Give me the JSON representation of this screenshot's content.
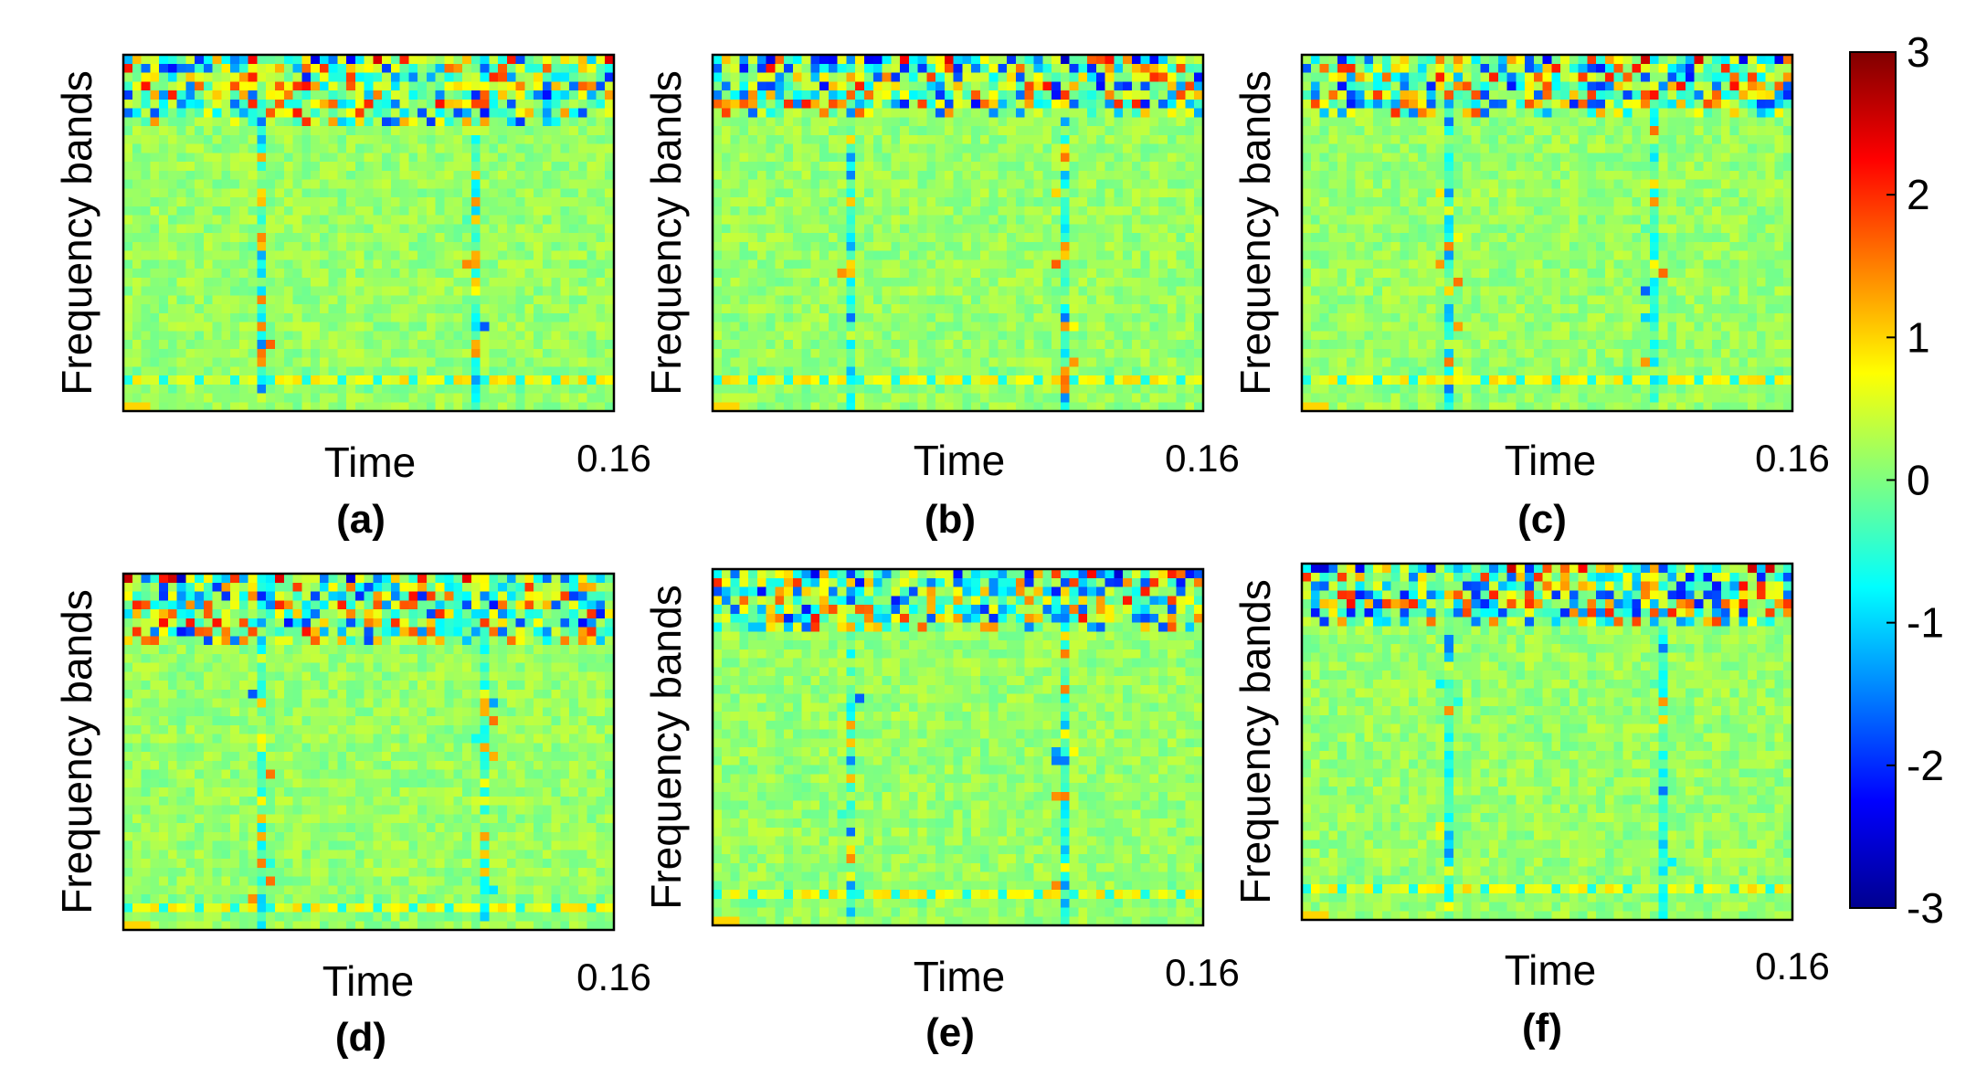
{
  "chart_data": [
    {
      "type": "heatmap",
      "panel_label": "(a)",
      "ylabel": "Frequency bands",
      "xlabel": "Time",
      "x_end_tick": "0.16",
      "rows": 40,
      "cols": 55,
      "top_band_rows": 7,
      "low_band_row": 36,
      "event_cols": [
        15,
        39
      ],
      "seed": 11
    },
    {
      "type": "heatmap",
      "panel_label": "(b)",
      "ylabel": "Frequency bands",
      "xlabel": "Time",
      "x_end_tick": "0.16",
      "rows": 40,
      "cols": 55,
      "top_band_rows": 6,
      "low_band_row": 36,
      "event_cols": [
        15,
        39
      ],
      "seed": 23
    },
    {
      "type": "heatmap",
      "panel_label": "(c)",
      "ylabel": "Frequency bands",
      "xlabel": "Time",
      "x_end_tick": "0.16",
      "rows": 40,
      "cols": 55,
      "top_band_rows": 6,
      "low_band_row": 36,
      "event_cols": [
        16,
        39
      ],
      "seed": 37
    },
    {
      "type": "heatmap",
      "panel_label": "(d)",
      "ylabel": "Frequency bands",
      "xlabel": "Time",
      "x_end_tick": "0.16",
      "rows": 40,
      "cols": 55,
      "top_band_rows": 7,
      "low_band_row": 37,
      "event_cols": [
        15,
        40
      ],
      "seed": 41
    },
    {
      "type": "heatmap",
      "panel_label": "(e)",
      "ylabel": "Frequency bands",
      "xlabel": "Time",
      "x_end_tick": "0.16",
      "rows": 40,
      "cols": 55,
      "top_band_rows": 6,
      "low_band_row": 36,
      "event_cols": [
        15,
        39
      ],
      "seed": 53
    },
    {
      "type": "heatmap",
      "panel_label": "(f)",
      "ylabel": "Frequency bands",
      "xlabel": "Time",
      "x_end_tick": "0.16",
      "rows": 40,
      "cols": 55,
      "top_band_rows": 6,
      "low_band_row": 36,
      "event_cols": [
        16,
        40
      ],
      "seed": 67
    }
  ],
  "colorbar": {
    "colormap": "jet",
    "vmin": -3,
    "vmax": 3,
    "ticks": [
      "3",
      "2",
      "1",
      "0",
      "-1",
      "-2",
      "-3"
    ]
  }
}
